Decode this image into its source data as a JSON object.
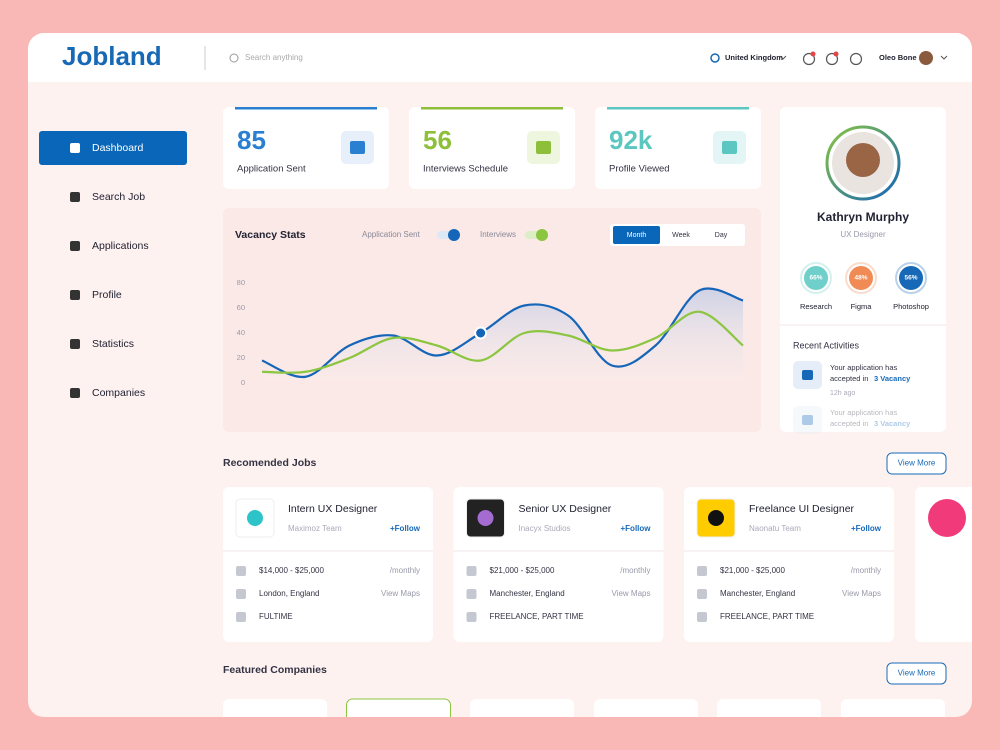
{
  "header": {
    "logo": "Jobland",
    "search_placeholder": "Search anything",
    "country": "United Kingdom",
    "user": "Oleo Bone"
  },
  "sidebar": {
    "items": [
      "Dashboard",
      "Search Job",
      "Applications",
      "Profile",
      "Statistics",
      "Companies"
    ]
  },
  "stats": [
    {
      "value": 85,
      "label": "Application Sent"
    },
    {
      "value": 56,
      "label": "Interviews Schedule"
    },
    {
      "value": "92k",
      "label": "Profile Viewed"
    }
  ],
  "vacancy_stats": {
    "title": "Vacancy Stats",
    "tabs": [
      "Month",
      "Week",
      "Day"
    ],
    "chart": {
      "type": "line",
      "categories": [
        null,
        null,
        null,
        null,
        null,
        null,
        null,
        null,
        null,
        null,
        null,
        null
      ],
      "ylim": [
        -6,
        96
      ],
      "yticks": [
        0,
        20,
        40,
        60,
        80
      ],
      "series": [
        {
          "name": "Application Sent",
          "color": "#1565b8",
          "values": [
            18,
            5,
            30,
            38,
            22,
            40,
            62,
            54,
            14,
            30,
            74,
            66
          ]
        },
        {
          "name": "Interviews",
          "color": "#8cc540",
          "values": [
            9,
            9,
            20,
            36,
            30,
            18,
            40,
            38,
            26,
            36,
            57,
            30
          ]
        }
      ]
    }
  },
  "profile": {
    "name": "Kathryn Murphy",
    "role": "UX Designer",
    "skills": [
      {
        "value": "66%",
        "name": "Research"
      },
      {
        "value": "48%",
        "name": "Figma"
      },
      {
        "value": "56%",
        "name": "Photoshop"
      }
    ],
    "activities_title": "Recent Activities",
    "activities": [
      {
        "text": "Your application has",
        "text2": "accepted in",
        "highlight": "3 Vacancy",
        "time": "12h ago"
      },
      {
        "text": "Your application has",
        "text2": "accepted in",
        "highlight": "3 Vacancy"
      }
    ]
  },
  "recommended_jobs": {
    "title": "Recomended Jobs",
    "button": "View More",
    "jobs": [
      {
        "title": "Intern UX Designer",
        "company": "Maximoz Team",
        "follow": "+Follow",
        "salary": "$14,000 - $25,000",
        "period": "/monthly",
        "location": "London, England",
        "maps": "View Maps",
        "type": "FULTIME"
      },
      {
        "title": "Senior UX Designer",
        "company": "Inacyx Studios",
        "follow": "+Follow",
        "salary": "$21,000 - $25,000",
        "period": "/monthly",
        "location": "Manchester, England",
        "maps": "View Maps",
        "type": "FREELANCE, PART TIME"
      },
      {
        "title": "Freelance UI Designer",
        "company": "Naonatu Team",
        "follow": "+Follow",
        "salary": "$21,000 - $25,000",
        "period": "/monthly",
        "location": "Manchester, England",
        "maps": "View Maps",
        "type": "FREELANCE, PART TIME"
      }
    ]
  },
  "featured_companies": {
    "title": "Featured Companies",
    "button": "View More"
  }
}
